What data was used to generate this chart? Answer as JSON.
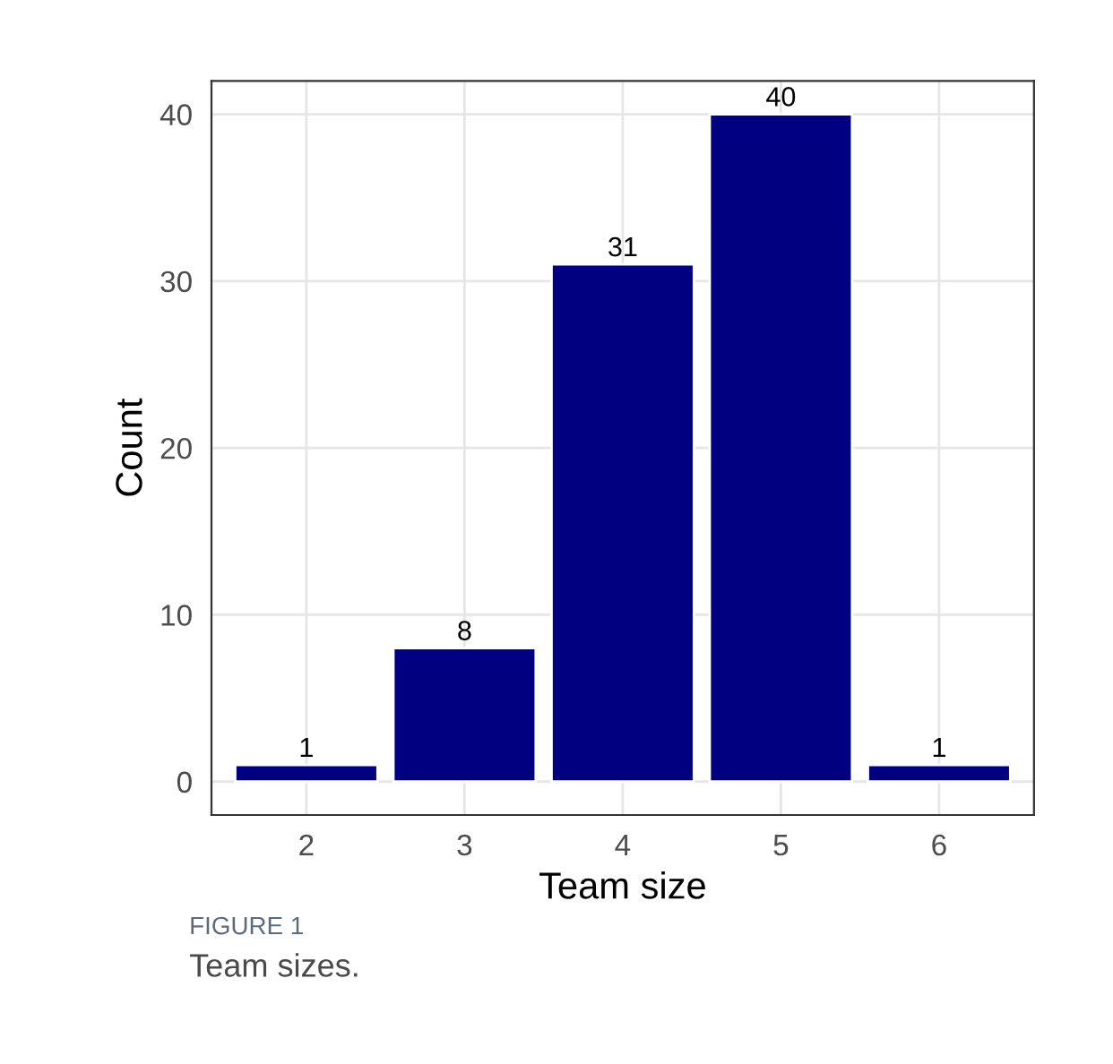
{
  "chart_data": {
    "type": "bar",
    "xlabel": "Team size",
    "ylabel": "Count",
    "categories": [
      "2",
      "3",
      "4",
      "5",
      "6"
    ],
    "values": [
      1,
      8,
      31,
      40,
      1
    ],
    "color": "#000080",
    "ylim": [
      -2,
      42
    ],
    "yticks": [
      0,
      10,
      20,
      30,
      40
    ],
    "grid": true,
    "data_labels": true,
    "annotations": [
      "FIGURE 1",
      "Team sizes."
    ]
  }
}
